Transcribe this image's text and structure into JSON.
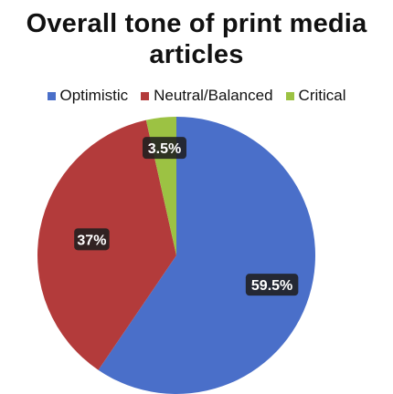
{
  "chart_data": {
    "type": "pie",
    "title_lines": [
      "Overall tone of print media",
      "articles"
    ],
    "categories": [
      "Optimistic",
      "Neutral/Balanced",
      "Critical"
    ],
    "values": [
      59.5,
      37,
      3.5
    ],
    "data_labels": [
      "59.5%",
      "37%",
      "3.5%"
    ],
    "colors": [
      "#4a6fc9",
      "#b33b3b",
      "#9cc243"
    ],
    "legend_position": "top",
    "start": "top, clockwise"
  }
}
